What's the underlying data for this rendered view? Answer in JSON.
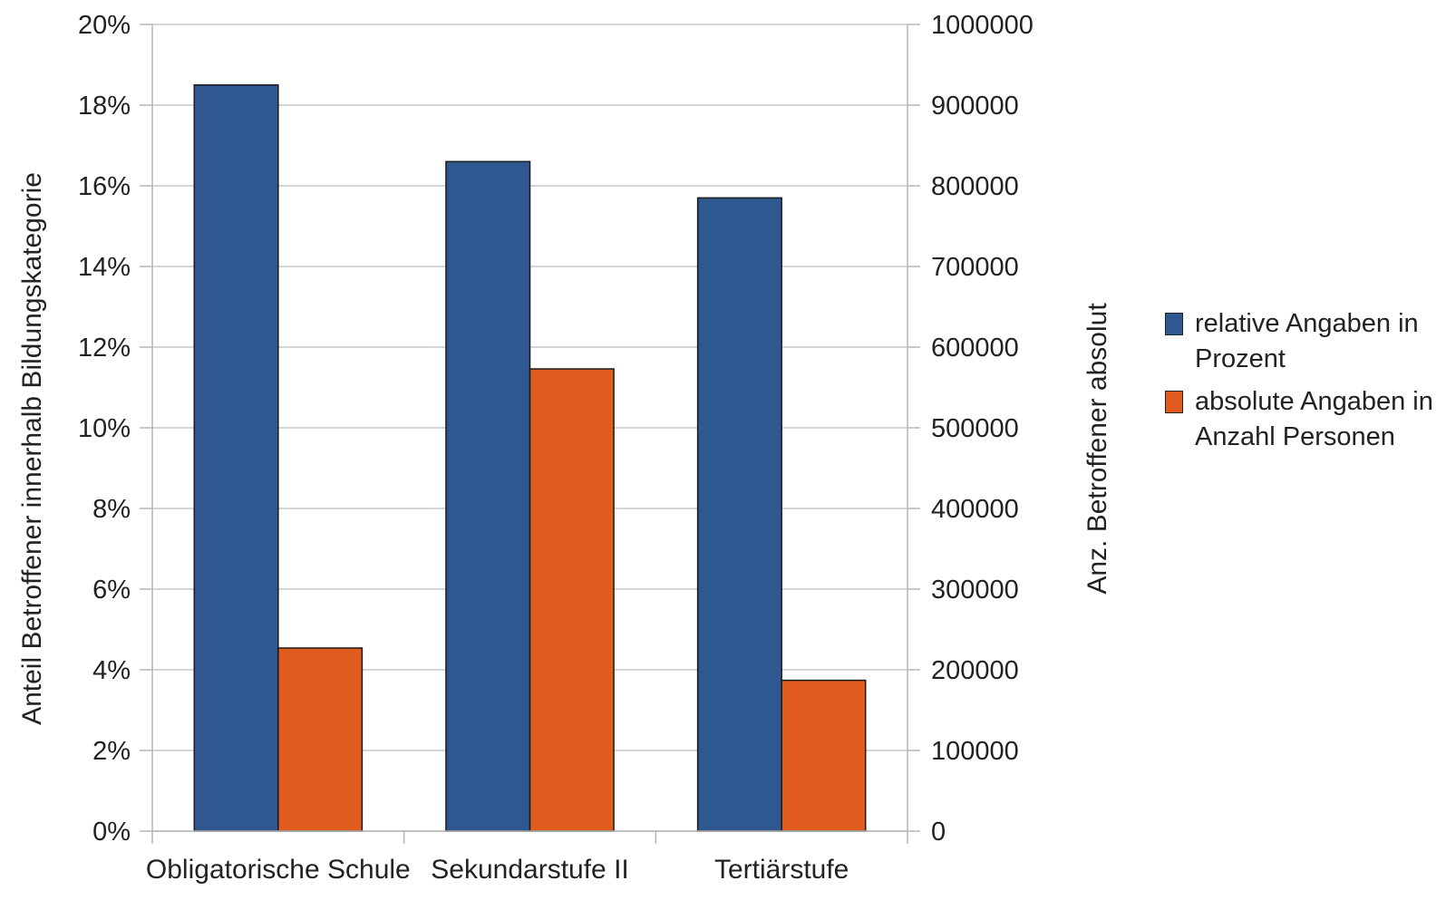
{
  "chart_data": {
    "type": "bar",
    "categories": [
      "Obligatorische Schule",
      "Sekundarstufe II",
      "Tertiärstufe"
    ],
    "series": [
      {
        "name": "relative Angaben in Prozent",
        "axis": "left",
        "color": "#2F5891",
        "values": [
          18.5,
          16.6,
          15.7
        ]
      },
      {
        "name": "absolute Angaben in Anzahl Personen",
        "axis": "right",
        "color": "#DF5B1E",
        "values": [
          227000,
          573000,
          187000
        ]
      }
    ],
    "y_left": {
      "label": "Anteil Betroffener innerhalb Bildungskategorie",
      "ylim": [
        0,
        20
      ],
      "ticks": [
        "0%",
        "2%",
        "4%",
        "6%",
        "8%",
        "10%",
        "12%",
        "14%",
        "16%",
        "18%",
        "20%"
      ]
    },
    "y_right": {
      "label": "Anz. Betroffener absolut",
      "ylim": [
        0,
        1000000
      ],
      "ticks": [
        "0",
        "100000",
        "200000",
        "300000",
        "400000",
        "500000",
        "600000",
        "700000",
        "800000",
        "900000",
        "1000000"
      ]
    },
    "grid": true,
    "legend_position": "right"
  },
  "legend": {
    "items": [
      {
        "label_line1": "relative Angaben in",
        "label_line2": "Prozent",
        "color": "#2F5891"
      },
      {
        "label_line1": "absolute Angaben in",
        "label_line2": "Anzahl Personen",
        "color": "#DF5B1E"
      }
    ]
  }
}
